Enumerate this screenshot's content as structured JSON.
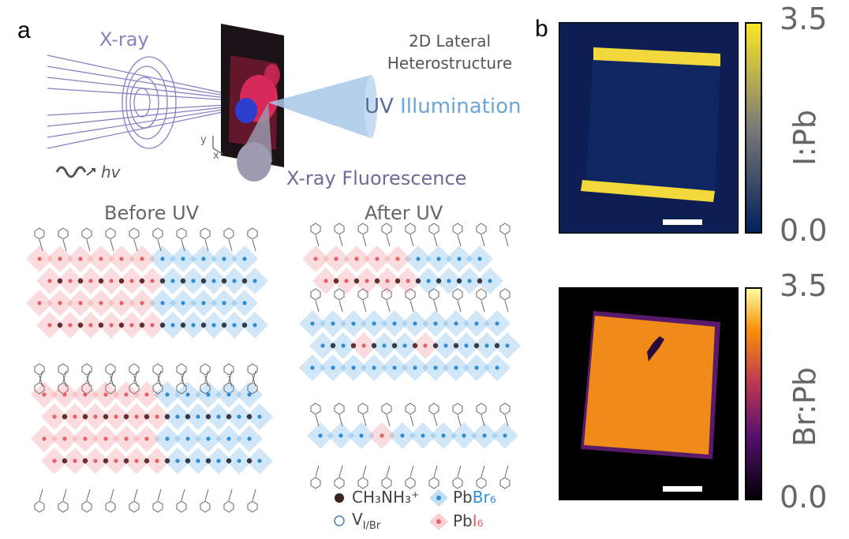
{
  "panel_a": {
    "letter": "a",
    "xray_label": "X-ray",
    "hv_label": "hv",
    "heterostructure_line1": "2D Lateral",
    "heterostructure_line2": "Heterostructure",
    "uv_word": "UV",
    "illumination_word": "Illumination",
    "fluorescence_label": "X-ray Fluorescence",
    "axis_y": "y",
    "axis_x": "x",
    "before_title": "Before UV",
    "after_title": "After UV",
    "legend": {
      "ch3nh3": "CH₃NH₃⁺",
      "vacancy": "V",
      "vacancy_sub": "I/Br",
      "pbbr6_prefix": "Pb",
      "pbbr6_element": "Br₆",
      "pbi6_prefix": "Pb",
      "pbi6_element": "I₆"
    }
  },
  "panel_b": {
    "letter": "b",
    "top_map": {
      "colorbar_max": "3.5",
      "colorbar_min": "0.0",
      "label": "I:Pb"
    },
    "bottom_map": {
      "colorbar_max": "3.5",
      "colorbar_min": "0.0",
      "label": "Br:Pb"
    }
  },
  "colors": {
    "iodide_red": "#e8606a",
    "bromide_blue": "#2f8fd6",
    "xray_purple": "#8a80c4",
    "uv_blue": "#6aa6d8",
    "map_bg_top": "#0d1f52",
    "map_edge_yellow": "#f2d83a",
    "map_fill_orange": "#f08a18"
  }
}
